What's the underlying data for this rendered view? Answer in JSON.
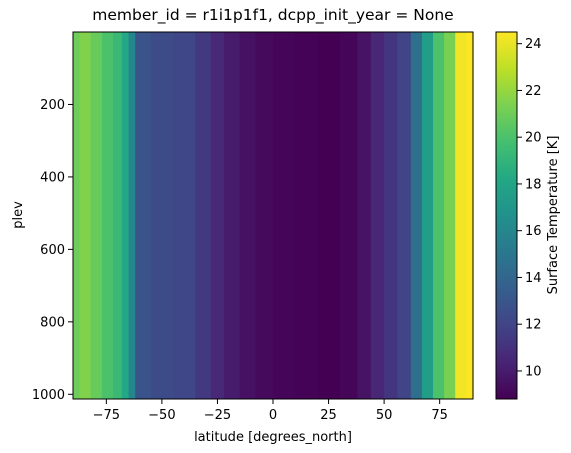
{
  "chart_data": {
    "type": "heatmap",
    "title": "member_id = r1i1p1f1, dcpp_init_year = None",
    "xlabel": "latitude [degrees_north]",
    "ylabel": "plev",
    "xlim": [
      -90,
      90
    ],
    "ylim": [
      1013,
      0
    ],
    "x_ticks": [
      -75,
      -50,
      -25,
      0,
      25,
      50,
      75
    ],
    "y_ticks": [
      200,
      400,
      600,
      800,
      1000
    ],
    "colormap": "viridis",
    "colorbar": {
      "label": "Surface Temperature [K]",
      "min": 8.8,
      "max": 24.5,
      "ticks": [
        10,
        12,
        14,
        16,
        18,
        20,
        22,
        24
      ]
    },
    "note_values_constant_along_plev": true,
    "columns": [
      {
        "lat_start": -90,
        "lat_end": -87,
        "value": 21.0
      },
      {
        "lat_start": -87,
        "lat_end": -82,
        "value": 21.5
      },
      {
        "lat_start": -82,
        "lat_end": -77,
        "value": 20.8
      },
      {
        "lat_start": -77,
        "lat_end": -72,
        "value": 20.0
      },
      {
        "lat_start": -72,
        "lat_end": -68,
        "value": 19.3
      },
      {
        "lat_start": -68,
        "lat_end": -65,
        "value": 18.2
      },
      {
        "lat_start": -65,
        "lat_end": -62,
        "value": 16.0
      },
      {
        "lat_start": -62,
        "lat_end": -55,
        "value": 12.8
      },
      {
        "lat_start": -55,
        "lat_end": -45,
        "value": 12.4
      },
      {
        "lat_start": -45,
        "lat_end": -35,
        "value": 12.1
      },
      {
        "lat_start": -35,
        "lat_end": -28,
        "value": 11.4
      },
      {
        "lat_start": -28,
        "lat_end": -22,
        "value": 10.6
      },
      {
        "lat_start": -22,
        "lat_end": -15,
        "value": 10.0
      },
      {
        "lat_start": -15,
        "lat_end": -8,
        "value": 9.5
      },
      {
        "lat_start": -8,
        "lat_end": 0,
        "value": 9.2
      },
      {
        "lat_start": 0,
        "lat_end": 10,
        "value": 9.0
      },
      {
        "lat_start": 10,
        "lat_end": 20,
        "value": 8.9
      },
      {
        "lat_start": 20,
        "lat_end": 30,
        "value": 8.8
      },
      {
        "lat_start": 30,
        "lat_end": 38,
        "value": 9.0
      },
      {
        "lat_start": 38,
        "lat_end": 44,
        "value": 9.6
      },
      {
        "lat_start": 44,
        "lat_end": 50,
        "value": 10.5
      },
      {
        "lat_start": 50,
        "lat_end": 56,
        "value": 11.2
      },
      {
        "lat_start": 56,
        "lat_end": 62,
        "value": 12.0
      },
      {
        "lat_start": 62,
        "lat_end": 67,
        "value": 14.5
      },
      {
        "lat_start": 67,
        "lat_end": 72,
        "value": 17.5
      },
      {
        "lat_start": 72,
        "lat_end": 77,
        "value": 20.0
      },
      {
        "lat_start": 77,
        "lat_end": 82,
        "value": 21.3
      },
      {
        "lat_start": 82,
        "lat_end": 87,
        "value": 24.2
      },
      {
        "lat_start": 87,
        "lat_end": 90,
        "value": 24.5
      }
    ]
  }
}
